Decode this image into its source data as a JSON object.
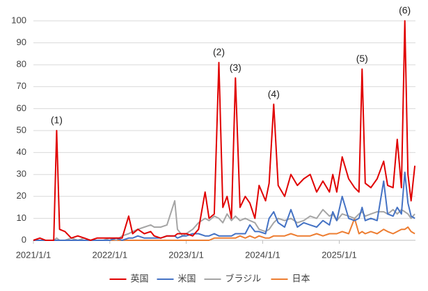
{
  "chart_data": {
    "type": "line",
    "x": [
      "2021/1/1",
      "2021/2/1",
      "2021/3/1",
      "2021/4/8",
      "2021/4/22",
      "2021/5/6",
      "2021/6/1",
      "2021/7/1",
      "2021/8/1",
      "2021/9/1",
      "2021/10/1",
      "2021/11/1",
      "2021/12/1",
      "2022/1/1",
      "2022/2/1",
      "2022/3/1",
      "2022/4/1",
      "2022/4/20",
      "2022/5/15",
      "2022/6/15",
      "2022/7/15",
      "2022/8/1",
      "2022/9/1",
      "2022/10/1",
      "2022/11/7",
      "2022/11/20",
      "2022/12/15",
      "2023/1/1",
      "2023/2/1",
      "2023/3/1",
      "2023/4/1",
      "2023/4/20",
      "2023/5/15",
      "2023/6/6",
      "2023/6/25",
      "2023/7/15",
      "2023/8/5",
      "2023/8/24",
      "2023/9/15",
      "2023/10/10",
      "2023/11/1",
      "2023/11/25",
      "2023/12/15",
      "2024/1/15",
      "2024/2/1",
      "2024/2/23",
      "2024/3/15",
      "2024/4/15",
      "2024/5/15",
      "2024/6/15",
      "2024/7/15",
      "2024/8/15",
      "2024/9/15",
      "2024/10/15",
      "2024/11/15",
      "2024/12/1",
      "2024/12/20",
      "2025/1/15",
      "2025/2/15",
      "2025/3/15",
      "2025/4/5",
      "2025/4/20",
      "2025/5/5",
      "2025/6/1",
      "2025/7/1",
      "2025/8/1",
      "2025/8/20",
      "2025/9/15",
      "2025/10/5",
      "2025/10/25",
      "2025/11/10",
      "2025/11/25",
      "2025/12/10",
      "2025/12/28"
    ],
    "series": [
      {
        "name": "英国",
        "color": "#e00000",
        "values": [
          0,
          1,
          0,
          0,
          50,
          5,
          4,
          1,
          2,
          1,
          0,
          1,
          1,
          1,
          1,
          1,
          11,
          3,
          5,
          3,
          4,
          2,
          1,
          2,
          2,
          3,
          3,
          3,
          2,
          5,
          22,
          10,
          12,
          81,
          15,
          20,
          10,
          74,
          15,
          20,
          17,
          10,
          25,
          18,
          26,
          62,
          25,
          20,
          30,
          25,
          28,
          30,
          22,
          27,
          22,
          30,
          22,
          38,
          28,
          24,
          22,
          78,
          26,
          24,
          28,
          36,
          25,
          24,
          46,
          24,
          100,
          30,
          18,
          34
        ]
      },
      {
        "name": "米国",
        "color": "#4472c4",
        "values": [
          0,
          0,
          0,
          0,
          0,
          0,
          0,
          0,
          0,
          0,
          0,
          0,
          0,
          0,
          1,
          0,
          1,
          1,
          2,
          1,
          1,
          1,
          1,
          2,
          2,
          1,
          2,
          2,
          3,
          3,
          2,
          2,
          3,
          2,
          2,
          2,
          2,
          3,
          3,
          3,
          7,
          4,
          4,
          3,
          10,
          13,
          8,
          6,
          14,
          6,
          8,
          7,
          6,
          9,
          7,
          13,
          9,
          20,
          10,
          9,
          10,
          15,
          9,
          10,
          9,
          27,
          12,
          11,
          15,
          12,
          31,
          17,
          11,
          10
        ]
      },
      {
        "name": "ブラジル",
        "color": "#a5a5a5",
        "values": [
          0,
          0,
          0,
          0,
          1,
          0,
          0,
          1,
          0,
          1,
          0,
          0,
          0,
          1,
          0,
          2,
          3,
          4,
          5,
          6,
          7,
          6,
          6,
          7,
          18,
          5,
          2,
          3,
          5,
          8,
          10,
          9,
          11,
          10,
          8,
          12,
          9,
          11,
          9,
          10,
          9,
          8,
          5,
          4,
          5,
          8,
          10,
          9,
          10,
          8,
          9,
          11,
          10,
          14,
          11,
          12,
          9,
          12,
          11,
          10,
          12,
          13,
          11,
          12,
          13,
          13,
          12,
          14,
          12,
          14,
          13,
          12,
          10,
          12
        ]
      },
      {
        "name": "日本",
        "color": "#ed7d31",
        "values": [
          0,
          0,
          0,
          0,
          0,
          0,
          0,
          0,
          0,
          0,
          0,
          0,
          0,
          0,
          0,
          0,
          0,
          0,
          0,
          0,
          0,
          0,
          0,
          0,
          0,
          0,
          0,
          0,
          0,
          0,
          0,
          0,
          1,
          1,
          1,
          1,
          1,
          1,
          2,
          1,
          2,
          1,
          2,
          1,
          1,
          2,
          2,
          2,
          3,
          2,
          2,
          2,
          3,
          2,
          3,
          3,
          3,
          4,
          3,
          10,
          3,
          4,
          3,
          4,
          3,
          5,
          4,
          3,
          4,
          5,
          5,
          6,
          4,
          3
        ]
      }
    ],
    "annotations": [
      {
        "text": "(1)",
        "x": "2021/4/22",
        "y": 50
      },
      {
        "text": "(2)",
        "x": "2023/6/6",
        "y": 81
      },
      {
        "text": "(3)",
        "x": "2023/8/24",
        "y": 74
      },
      {
        "text": "(4)",
        "x": "2024/2/23",
        "y": 62
      },
      {
        "text": "(5)",
        "x": "2025/4/20",
        "y": 78
      },
      {
        "text": "(6)",
        "x": "2025/11/10",
        "y": 100
      }
    ],
    "xlim": [
      "2021/1/1",
      "2025/12/31"
    ],
    "xticks": [
      "2021/1/1",
      "2022/1/1",
      "2023/1/1",
      "2024/1/1",
      "2025/1/1"
    ],
    "ylim": [
      0,
      100
    ],
    "yticks": [
      0,
      10,
      20,
      30,
      40,
      50,
      60,
      70,
      80,
      90,
      100
    ],
    "grid": true,
    "legend": "bottom"
  }
}
